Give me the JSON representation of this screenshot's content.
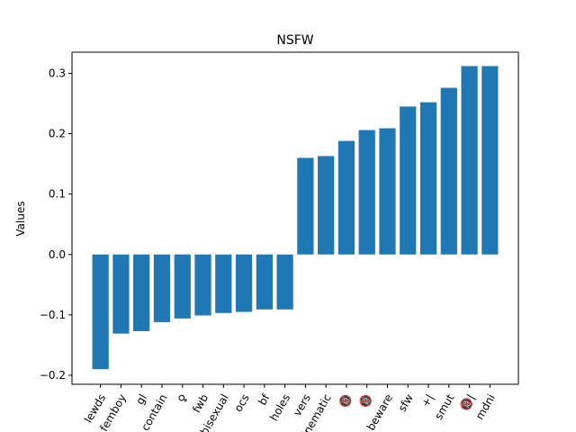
{
  "chart_data": {
    "type": "bar",
    "title": "NSFW",
    "xlabel": "",
    "ylabel": "Values",
    "ylim": [
      -0.215,
      0.335
    ],
    "yticks": [
      -0.2,
      -0.1,
      0.0,
      0.1,
      0.2,
      0.3
    ],
    "ytick_labels": [
      "−0.2",
      "−0.1",
      "0.0",
      "0.1",
      "0.2",
      "0.3"
    ],
    "grid": false,
    "categories": [
      "lewds",
      "femboy",
      "gl",
      "contain",
      "♀",
      "fwb",
      "bisexual",
      "ocs",
      "bf",
      "holes",
      "vers",
      "cinematic",
      "🔞",
      "🔞",
      "beware",
      "sfw",
      "+|",
      "smut",
      "🔞|",
      "mdni"
    ],
    "values": [
      -0.19,
      -0.131,
      -0.127,
      -0.112,
      -0.106,
      -0.101,
      -0.097,
      -0.095,
      -0.091,
      -0.091,
      0.16,
      0.163,
      0.188,
      0.206,
      0.209,
      0.245,
      0.252,
      0.276,
      0.312,
      0.312
    ],
    "bar_color": "#1f77b4"
  }
}
